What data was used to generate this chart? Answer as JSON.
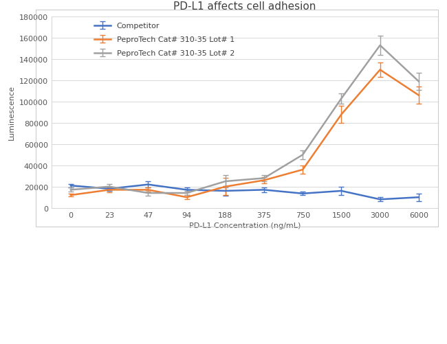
{
  "title": "PD-L1 affects cell adhesion",
  "xlabel": "PD-L1 Concentration (ng/mL)",
  "ylabel": "Luminescence",
  "x_labels": [
    "0",
    "23",
    "47",
    "94",
    "188",
    "375",
    "750",
    "1500",
    "3000",
    "6000"
  ],
  "ylim": [
    0,
    180000
  ],
  "yticks": [
    0,
    20000,
    40000,
    60000,
    80000,
    100000,
    120000,
    140000,
    160000,
    180000
  ],
  "series": [
    {
      "label": "Competitor",
      "color": "#4472C4",
      "values": [
        21000,
        18000,
        22000,
        17000,
        16000,
        17000,
        13500,
        16000,
        8000,
        10000
      ],
      "yerr": [
        1500,
        2000,
        3000,
        2500,
        4500,
        2500,
        1500,
        4000,
        2000,
        3500
      ]
    },
    {
      "label": "PeproTech Cat# 310-35 Lot# 1",
      "color": "#ED7D31",
      "values": [
        12000,
        17000,
        17000,
        10000,
        20000,
        26000,
        36000,
        88000,
        130000,
        106000
      ],
      "yerr": [
        1500,
        2500,
        2000,
        2000,
        8000,
        3000,
        4000,
        8000,
        7000,
        8000
      ]
    },
    {
      "label": "PeproTech Cat# 310-35 Lot# 2",
      "color": "#A0A0A0",
      "values": [
        17000,
        20000,
        14000,
        14000,
        25000,
        28000,
        50000,
        103000,
        153000,
        119000
      ],
      "yerr": [
        2000,
        2500,
        2500,
        2000,
        6000,
        3000,
        4000,
        5000,
        9000,
        8000
      ]
    }
  ],
  "figure_bg": "#FFFFFF",
  "panel_bg": "#FFFFFF",
  "panel_border": "#CCCCCC",
  "grid_color": "#D8D8D8",
  "title_fontsize": 11,
  "axis_label_fontsize": 8,
  "tick_fontsize": 8,
  "legend_fontsize": 8
}
